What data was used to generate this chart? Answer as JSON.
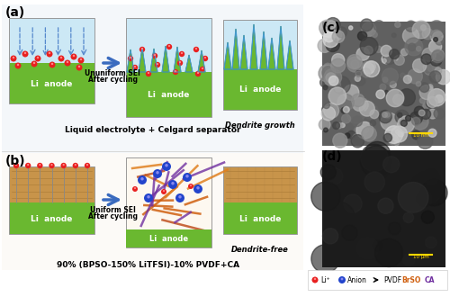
{
  "bg_color": "#ffffff",
  "green_color": "#6ab830",
  "blue_bg": "#cce8f5",
  "tan_color": "#c8944a",
  "tan_dark": "#a07030",
  "arrow_color": "#3a6bbf",
  "red_circle": "#e82020",
  "red_highlight": "#ffaaaa",
  "blue_circle": "#2244cc",
  "blue_highlight": "#6688ee",
  "scale_bar_color": "#ffd700",
  "label_li_anode": "Li  anode",
  "label_ununiform": "Ununiform SEI",
  "label_after_cycling": "After cycling",
  "label_dendrite_growth": "Dendrite growth",
  "label_liquid": "Liquid electrolyte + Celgard separator",
  "label_uniform": "Uniform SEI",
  "label_dendrite_free": "Dendrite-free",
  "label_formula": "90% (BPSO-150% LiTFSI)-10% PVDF+CA",
  "legend_li": "Li⁺",
  "legend_anion": "Anion",
  "legend_pvdf": "PVDF",
  "legend_bpso": "BrSO",
  "legend_ca": "CA"
}
